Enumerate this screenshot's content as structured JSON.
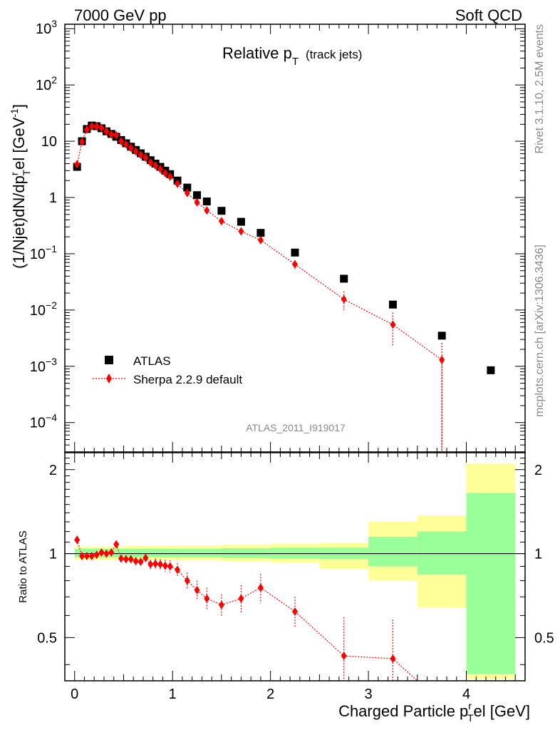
{
  "header": {
    "left": "7000 GeV pp",
    "right": "Soft QCD"
  },
  "side_labels": {
    "upper": "Rivet 3.1.10,  2.5M events",
    "lower": "mcplots.cern.ch [arXiv:1306.3436]"
  },
  "analysis_id": "ATLAS_2011_I919017",
  "plot_title": {
    "main": "Relative p",
    "sub": "T",
    "suffix": "(track jets)"
  },
  "axis_titles": {
    "y_upper": "(1/Njet)dN/dp",
    "y_upper_sub": "T",
    "y_upper_sup": "r",
    "y_upper_rest": "el [GeV",
    "y_upper_exp": "-1",
    "y_upper_close": "]",
    "y_lower": "Ratio to ATLAS",
    "x_main": "Charged Particle p",
    "x_sup": "r",
    "x_sub": "T",
    "x_rest": "el [GeV]"
  },
  "legend": {
    "data": "ATLAS",
    "mc": "Sherpa 2.2.9 default"
  },
  "colors": {
    "data": "#000000",
    "mc": "#ff0000",
    "band_inner": "#99ff99",
    "band_outer": "#ffff99"
  },
  "chart_data": [
    {
      "type": "scatter",
      "panel": "main",
      "yscale": "log",
      "xlim": [
        -0.1,
        4.6
      ],
      "ylim": [
        3e-05,
        1200
      ],
      "x_ticks": [
        "0",
        "1",
        "2",
        "3",
        "4"
      ],
      "y_ticks": [
        "10^-4",
        "10^-3",
        "10^-2",
        "10^-1",
        "1",
        "10",
        "10^2",
        "10^3"
      ],
      "series": [
        {
          "name": "ATLAS",
          "x": [
            0.025,
            0.075,
            0.125,
            0.175,
            0.225,
            0.275,
            0.325,
            0.375,
            0.425,
            0.475,
            0.525,
            0.575,
            0.625,
            0.675,
            0.725,
            0.775,
            0.825,
            0.875,
            0.925,
            0.975,
            1.05,
            1.15,
            1.25,
            1.35,
            1.5,
            1.7,
            1.9,
            2.25,
            2.75,
            3.25,
            3.75,
            4.25
          ],
          "y": [
            3.5,
            10,
            16.5,
            19,
            18.5,
            17,
            15,
            13.5,
            12,
            10.5,
            9.2,
            8.0,
            7.0,
            6.1,
            5.3,
            4.6,
            4.0,
            3.5,
            3.0,
            2.6,
            2.0,
            1.5,
            1.1,
            0.85,
            0.58,
            0.37,
            0.235,
            0.105,
            0.036,
            0.0125,
            0.0035,
            0.00085
          ]
        },
        {
          "name": "Sherpa 2.2.9 default",
          "x": [
            0.025,
            0.075,
            0.125,
            0.175,
            0.225,
            0.275,
            0.325,
            0.375,
            0.425,
            0.475,
            0.525,
            0.575,
            0.625,
            0.675,
            0.725,
            0.775,
            0.825,
            0.875,
            0.925,
            0.975,
            1.05,
            1.15,
            1.25,
            1.35,
            1.5,
            1.7,
            1.9,
            2.25,
            2.75,
            3.25,
            3.75
          ],
          "y": [
            3.9,
            9.8,
            16.2,
            18.5,
            18.4,
            17.2,
            15.0,
            13.2,
            12.8,
            10.0,
            8.8,
            7.6,
            6.6,
            5.7,
            5.1,
            4.2,
            3.7,
            3.2,
            2.7,
            2.35,
            1.75,
            1.2,
            0.82,
            0.59,
            0.38,
            0.25,
            0.175,
            0.065,
            0.0155,
            0.0055,
            0.0013
          ],
          "err_lo": [
            0.1,
            0.2,
            0.3,
            0.3,
            0.3,
            0.3,
            0.3,
            0.3,
            0.3,
            0.25,
            0.25,
            0.2,
            0.2,
            0.2,
            0.2,
            0.15,
            0.15,
            0.15,
            0.15,
            0.12,
            0.1,
            0.08,
            0.06,
            0.05,
            0.035,
            0.03,
            0.025,
            0.012,
            0.006,
            0.0032,
            0.0013
          ],
          "err_hi": [
            0.1,
            0.2,
            0.3,
            0.3,
            0.3,
            0.3,
            0.3,
            0.3,
            0.3,
            0.25,
            0.25,
            0.2,
            0.2,
            0.2,
            0.2,
            0.15,
            0.15,
            0.15,
            0.15,
            0.12,
            0.1,
            0.08,
            0.06,
            0.05,
            0.035,
            0.03,
            0.025,
            0.012,
            0.006,
            0.0035,
            0.0013
          ]
        }
      ]
    },
    {
      "type": "scatter",
      "panel": "ratio",
      "ylabel": "Ratio to ATLAS",
      "xlabel": "Charged Particle p_T^rel [GeV]",
      "xlim": [
        -0.1,
        4.6
      ],
      "ylim": [
        0.35,
        2.3
      ],
      "x_ticks": [
        "0",
        "1",
        "2",
        "3",
        "4"
      ],
      "y_ticks": [
        "0.5",
        "1",
        "2"
      ],
      "bands": [
        {
          "x_lo": 0.0,
          "x_hi": 0.5,
          "inner": [
            0.97,
            1.04
          ],
          "outer": [
            0.95,
            1.06
          ]
        },
        {
          "x_lo": 0.5,
          "x_hi": 1.0,
          "inner": [
            0.97,
            1.04
          ],
          "outer": [
            0.95,
            1.065
          ]
        },
        {
          "x_lo": 1.0,
          "x_hi": 1.5,
          "inner": [
            0.97,
            1.04
          ],
          "outer": [
            0.945,
            1.07
          ]
        },
        {
          "x_lo": 1.5,
          "x_hi": 2.0,
          "inner": [
            0.965,
            1.045
          ],
          "outer": [
            0.94,
            1.075
          ]
        },
        {
          "x_lo": 2.0,
          "x_hi": 2.5,
          "inner": [
            0.96,
            1.05
          ],
          "outer": [
            0.93,
            1.085
          ]
        },
        {
          "x_lo": 2.5,
          "x_hi": 3.0,
          "inner": [
            0.955,
            1.05
          ],
          "outer": [
            0.88,
            1.09
          ]
        },
        {
          "x_lo": 3.0,
          "x_hi": 3.5,
          "inner": [
            0.9,
            1.15
          ],
          "outer": [
            0.8,
            1.3
          ]
        },
        {
          "x_lo": 3.5,
          "x_hi": 4.0,
          "inner": [
            0.84,
            1.2
          ],
          "outer": [
            0.64,
            1.37
          ]
        },
        {
          "x_lo": 4.0,
          "x_hi": 4.5,
          "inner": [
            0.37,
            1.65
          ],
          "outer": [
            0.355,
            2.1
          ]
        }
      ],
      "series": [
        {
          "name": "Sherpa 2.2.9 default",
          "x": [
            0.025,
            0.075,
            0.125,
            0.175,
            0.225,
            0.275,
            0.325,
            0.375,
            0.425,
            0.475,
            0.525,
            0.575,
            0.625,
            0.675,
            0.725,
            0.775,
            0.825,
            0.875,
            0.925,
            0.975,
            1.05,
            1.15,
            1.25,
            1.35,
            1.5,
            1.7,
            1.9,
            2.25,
            2.75,
            3.25
          ],
          "y": [
            1.12,
            0.98,
            0.98,
            0.98,
            0.99,
            1.01,
            1.0,
            1.01,
            1.08,
            0.96,
            0.955,
            0.955,
            0.94,
            0.935,
            0.965,
            0.915,
            0.92,
            0.915,
            0.905,
            0.9,
            0.875,
            0.8,
            0.74,
            0.69,
            0.655,
            0.69,
            0.755,
            0.62,
            0.43,
            0.42
          ],
          "err": [
            0.04,
            0.02,
            0.02,
            0.02,
            0.02,
            0.02,
            0.02,
            0.02,
            0.025,
            0.025,
            0.025,
            0.025,
            0.03,
            0.03,
            0.035,
            0.035,
            0.04,
            0.04,
            0.045,
            0.045,
            0.05,
            0.055,
            0.06,
            0.065,
            0.06,
            0.08,
            0.09,
            0.08,
            0.16,
            0.16
          ]
        }
      ]
    }
  ]
}
